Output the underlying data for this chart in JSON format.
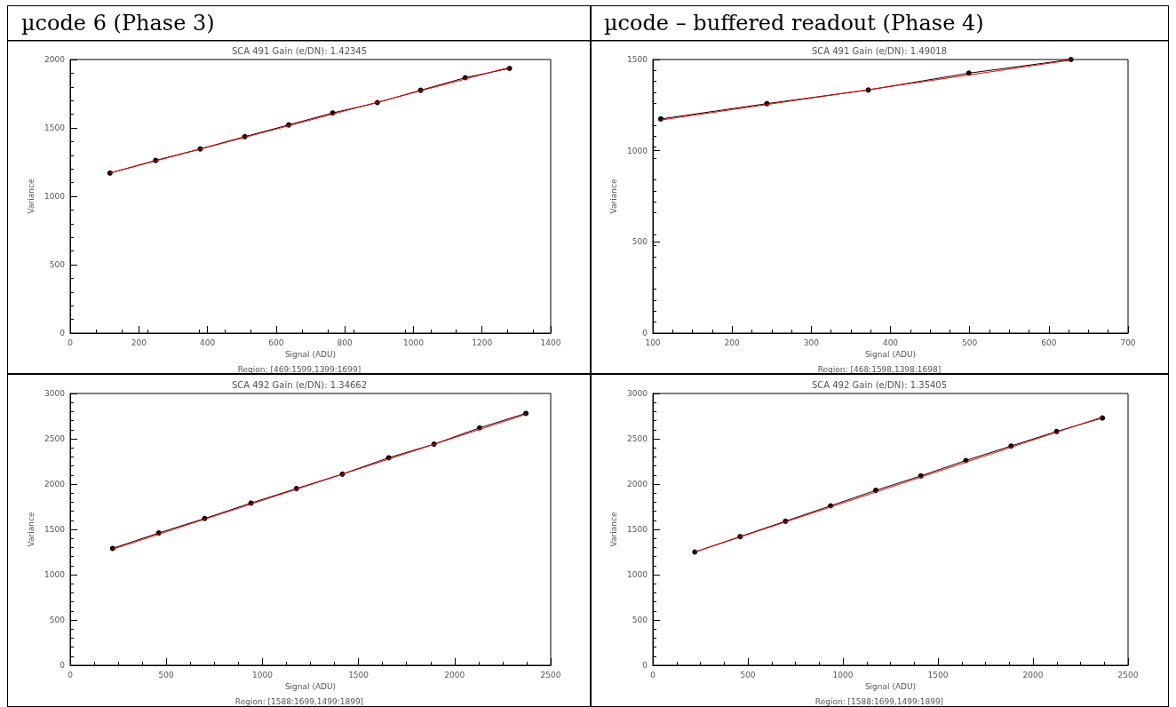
{
  "chart_data": [
    {
      "type": "line",
      "marker": "circle",
      "subtitle": "µcode 6 (Phase 3)",
      "title": "SCA 491 Gain (e/DN): 1.42345",
      "xlabel": "Signal (ADU)",
      "ylabel": "Variance",
      "annotations": [
        "Region: [469:1599,1399:1699]"
      ],
      "xlim": [
        0,
        1400
      ],
      "xticks": [
        0,
        200,
        400,
        600,
        800,
        1000,
        1200,
        1400
      ],
      "ylim": [
        0,
        2000
      ],
      "yticks": [
        0,
        500,
        1000,
        1500,
        2000
      ],
      "series": [
        {
          "color": "#000000",
          "x": [
            116,
            249,
            379,
            509,
            637,
            765,
            895,
            1021,
            1151,
            1280
          ],
          "values": [
            1170,
            1262,
            1346,
            1436,
            1522,
            1609,
            1685,
            1775,
            1867,
            1935
          ]
        },
        {
          "color": "#ff0000",
          "marker": "none",
          "x": [
            116,
            1280
          ],
          "values": [
            1170,
            1943
          ]
        }
      ]
    },
    {
      "type": "line",
      "marker": "circle",
      "subtitle": "µcode – buffered readout (Phase 4)",
      "title": "SCA 491 Gain (e/DN): 1.49018",
      "xlabel": "Signal (ADU)",
      "ylabel": "Variance",
      "annotations": [
        "Region: [468:1598,1398:1698]"
      ],
      "xlim": [
        100,
        700
      ],
      "xticks": [
        100,
        200,
        300,
        400,
        500,
        600,
        700
      ],
      "ylim": [
        0,
        1500
      ],
      "yticks": [
        0,
        500,
        1000,
        1500
      ],
      "series": [
        {
          "color": "#000000",
          "x": [
            110,
            244,
            372,
            499,
            628
          ],
          "values": [
            1174,
            1258,
            1333,
            1425,
            1500
          ]
        },
        {
          "color": "#ff0000",
          "marker": "none",
          "x": [
            110,
            628
          ],
          "values": [
            1168,
            1497
          ]
        }
      ]
    },
    {
      "type": "line",
      "marker": "circle",
      "title": "SCA 492 Gain (e/DN): 1.34662",
      "xlabel": "Signal (ADU)",
      "ylabel": "Variance",
      "annotations": [
        "Region: [1588:1699,1499:1899]"
      ],
      "xlim": [
        0,
        2500
      ],
      "xticks": [
        0,
        500,
        1000,
        1500,
        2000,
        2500
      ],
      "ylim": [
        0,
        3000
      ],
      "yticks": [
        0,
        500,
        1000,
        1500,
        2000,
        2500,
        3000
      ],
      "series": [
        {
          "color": "#000000",
          "x": [
            221,
            461,
            700,
            941,
            1177,
            1416,
            1657,
            1893,
            2130,
            2371
          ],
          "values": [
            1290,
            1460,
            1620,
            1790,
            1950,
            2110,
            2290,
            2440,
            2620,
            2780
          ]
        },
        {
          "color": "#ff0000",
          "marker": "none",
          "x": [
            221,
            2371
          ],
          "values": [
            1280,
            2770
          ]
        }
      ]
    },
    {
      "type": "line",
      "marker": "circle",
      "title": "SCA 492 Gain (e/DN): 1.35405",
      "xlabel": "Signal (ADU)",
      "ylabel": "Variance",
      "annotations": [
        "Region: [1588:1699,1499:1899]"
      ],
      "xlim": [
        0,
        2500
      ],
      "xticks": [
        0,
        500,
        1000,
        1500,
        2000,
        2500
      ],
      "ylim": [
        0,
        3000
      ],
      "yticks": [
        0,
        500,
        1000,
        1500,
        2000,
        2500,
        3000
      ],
      "series": [
        {
          "color": "#000000",
          "x": [
            221,
            459,
            698,
            935,
            1173,
            1410,
            1647,
            1885,
            2124,
            2365
          ],
          "values": [
            1250,
            1420,
            1590,
            1760,
            1930,
            2090,
            2260,
            2420,
            2580,
            2730
          ]
        },
        {
          "color": "#ff0000",
          "marker": "none",
          "x": [
            221,
            2365
          ],
          "values": [
            1250,
            2740
          ]
        }
      ]
    }
  ]
}
